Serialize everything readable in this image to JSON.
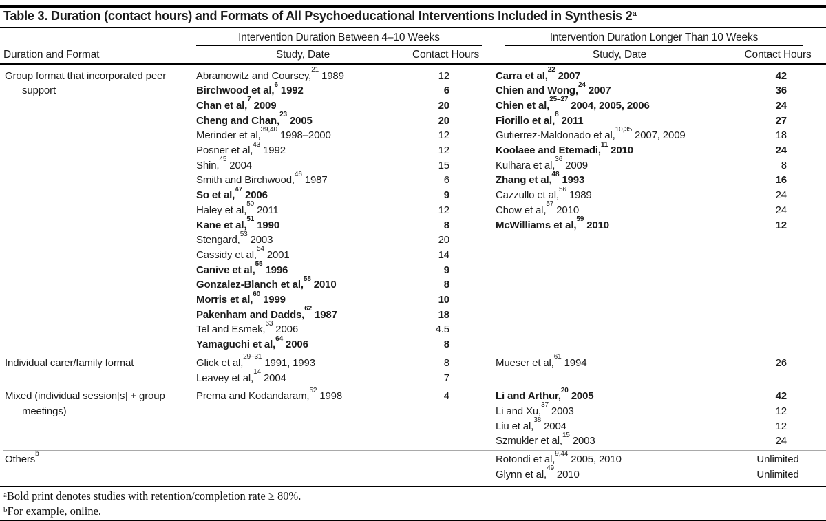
{
  "title": {
    "text": "Table 3. Duration (contact hours) and Formats of All Psychoeducational Interventions Included in Synthesis 2",
    "sup": "a"
  },
  "header": {
    "duration_format": "Duration and Format",
    "span_left": "Intervention Duration Between 4–10 Weeks",
    "span_right": "Intervention Duration Longer Than 10 Weeks",
    "study_date": "Study, Date",
    "contact_hours": "Contact Hours"
  },
  "groups": [
    {
      "format": "Group format that incorporated peer support",
      "left": [
        {
          "study": "Abramowitz and Coursey,",
          "ref": "21",
          "date": "1989",
          "hours": "12",
          "bold": false
        },
        {
          "study": "Birchwood et al,",
          "ref": "6",
          "date": "1992",
          "hours": "6",
          "bold": true
        },
        {
          "study": "Chan et al,",
          "ref": "7",
          "date": "2009",
          "hours": "20",
          "bold": true
        },
        {
          "study": "Cheng and Chan,",
          "ref": "23",
          "date": "2005",
          "hours": "20",
          "bold": true
        },
        {
          "study": "Merinder et al,",
          "ref": "39,40",
          "date": "1998–2000",
          "hours": "12",
          "bold": false
        },
        {
          "study": "Posner et al,",
          "ref": "43",
          "date": "1992",
          "hours": "12",
          "bold": false
        },
        {
          "study": "Shin,",
          "ref": "45",
          "date": "2004",
          "hours": "15",
          "bold": false
        },
        {
          "study": "Smith and Birchwood,",
          "ref": "46",
          "date": "1987",
          "hours": "6",
          "bold": false
        },
        {
          "study": "So et al,",
          "ref": "47",
          "date": "2006",
          "hours": "9",
          "bold": true
        },
        {
          "study": "Haley et al,",
          "ref": "50",
          "date": "2011",
          "hours": "12",
          "bold": false
        },
        {
          "study": "Kane et al,",
          "ref": "51",
          "date": "1990",
          "hours": "8",
          "bold": true
        },
        {
          "study": "Stengard,",
          "ref": "53",
          "date": "2003",
          "hours": "20",
          "bold": false
        },
        {
          "study": "Cassidy et al,",
          "ref": "54",
          "date": "2001",
          "hours": "14",
          "bold": false
        },
        {
          "study": "Canive et al,",
          "ref": "55",
          "date": "1996",
          "hours": "9",
          "bold": true
        },
        {
          "study": "Gonzalez-Blanch et al,",
          "ref": "58",
          "date": "2010",
          "hours": "8",
          "bold": true
        },
        {
          "study": "Morris et al,",
          "ref": "60",
          "date": "1999",
          "hours": "10",
          "bold": true
        },
        {
          "study": "Pakenham and Dadds,",
          "ref": "62",
          "date": "1987",
          "hours": "18",
          "bold": true
        },
        {
          "study": "Tel and Esmek,",
          "ref": "63",
          "date": "2006",
          "hours": "4.5",
          "bold": false
        },
        {
          "study": "Yamaguchi et al,",
          "ref": "64",
          "date": "2006",
          "hours": "8",
          "bold": true
        }
      ],
      "right": [
        {
          "study": "Carra et al,",
          "ref": "22",
          "date": "2007",
          "hours": "42",
          "bold": true
        },
        {
          "study": "Chien and Wong,",
          "ref": "24",
          "date": "2007",
          "hours": "36",
          "bold": true
        },
        {
          "study": "Chien et al,",
          "ref": "25–27",
          "date": "2004, 2005, 2006",
          "hours": "24",
          "bold": true
        },
        {
          "study": "Fiorillo et al,",
          "ref": "8",
          "date": "2011",
          "hours": "27",
          "bold": true
        },
        {
          "study": "Gutierrez-Maldonado et al,",
          "ref": "10,35",
          "date": "2007, 2009",
          "hours": "18",
          "bold": false
        },
        {
          "study": "Koolaee and Etemadi,",
          "ref": "11",
          "date": "2010",
          "hours": "24",
          "bold": true
        },
        {
          "study": "Kulhara et al,",
          "ref": "36",
          "date": "2009",
          "hours": "8",
          "bold": false
        },
        {
          "study": "Zhang et al,",
          "ref": "48",
          "date": "1993",
          "hours": "16",
          "bold": true
        },
        {
          "study": "Cazzullo et al,",
          "ref": "56",
          "date": "1989",
          "hours": "24",
          "bold": false
        },
        {
          "study": "Chow et al,",
          "ref": "57",
          "date": "2010",
          "hours": "24",
          "bold": false
        },
        {
          "study": "McWilliams et al,",
          "ref": "59",
          "date": "2010",
          "hours": "12",
          "bold": true
        }
      ]
    },
    {
      "format": "Individual carer/family format",
      "left": [
        {
          "study": "Glick et al,",
          "ref": "29–31",
          "date": "1991, 1993",
          "hours": "8",
          "bold": false
        },
        {
          "study": "Leavey et al,",
          "ref": "14",
          "date": "2004",
          "hours": "7",
          "bold": false
        }
      ],
      "right": [
        {
          "study": "Mueser et al,",
          "ref": "61",
          "date": "1994",
          "hours": "26",
          "bold": false
        }
      ]
    },
    {
      "format": "Mixed (individual session[s] + group meetings)",
      "left": [
        {
          "study": "Prema and Kodandaram,",
          "ref": "52",
          "date": "1998",
          "hours": "4",
          "bold": false
        }
      ],
      "right": [
        {
          "study": "Li and Arthur,",
          "ref": "20",
          "date": "2005",
          "hours": "42",
          "bold": true
        },
        {
          "study": "Li and Xu,",
          "ref": "37",
          "date": "2003",
          "hours": "12",
          "bold": false
        },
        {
          "study": "Liu et al,",
          "ref": "38",
          "date": "2004",
          "hours": "12",
          "bold": false
        },
        {
          "study": "Szmukler et al,",
          "ref": "15",
          "date": "2003",
          "hours": "24",
          "bold": false
        }
      ]
    },
    {
      "format": "Others",
      "format_sup": "b",
      "left": [],
      "right": [
        {
          "study": "Rotondi et al,",
          "ref": "9,44",
          "date": "2005, 2010",
          "hours": "Unlimited",
          "bold": false
        },
        {
          "study": "Glynn et al,",
          "ref": "49",
          "date": "2010",
          "hours": "Unlimited",
          "bold": false
        }
      ]
    }
  ],
  "footnotes": [
    {
      "sup": "a",
      "text": "Bold print denotes studies with retention/completion rate ≥ 80%."
    },
    {
      "sup": "b",
      "text": "For example, online."
    }
  ]
}
